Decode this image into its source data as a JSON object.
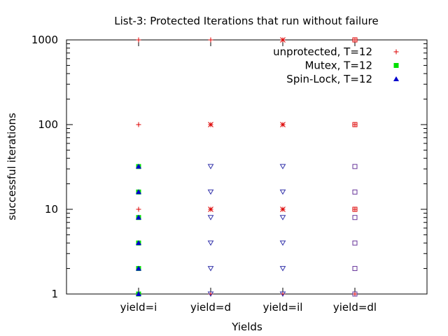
{
  "chart_data": {
    "type": "scatter",
    "title": "List-3: Protected Iterations that run without failure",
    "xlabel": "Yields",
    "ylabel": "successful iterations",
    "categories": [
      "yield=i",
      "yield=d",
      "yield=il",
      "yield=dl"
    ],
    "xlim": [
      0,
      5
    ],
    "ylim": [
      1,
      1000
    ],
    "y_scale": "log",
    "y_ticks": [
      1,
      10,
      100,
      1000
    ],
    "y_tick_labels": [
      "1",
      "10",
      "100",
      "1000"
    ],
    "grid": false,
    "legend_position": "top-right",
    "series": [
      {
        "name": "unprotected, T=12",
        "marker": "plus",
        "color": "#dd0000",
        "points": [
          {
            "x": "yield=i",
            "y": 1000
          },
          {
            "x": "yield=i",
            "y": 100
          },
          {
            "x": "yield=i",
            "y": 10
          },
          {
            "x": "yield=i",
            "y": 1
          },
          {
            "x": "yield=d",
            "y": 1000
          },
          {
            "x": "yield=d",
            "y": 100
          },
          {
            "x": "yield=d",
            "y": 10
          },
          {
            "x": "yield=d",
            "y": 1
          },
          {
            "x": "yield=il",
            "y": 1000
          },
          {
            "x": "yield=il",
            "y": 100
          },
          {
            "x": "yield=il",
            "y": 10
          },
          {
            "x": "yield=il",
            "y": 1
          },
          {
            "x": "yield=dl",
            "y": 1000
          },
          {
            "x": "yield=dl",
            "y": 100
          },
          {
            "x": "yield=dl",
            "y": 10
          },
          {
            "x": "yield=dl",
            "y": 1
          }
        ]
      },
      {
        "name": "Mutex, T=12",
        "marker": "square",
        "color": "#00e000",
        "points": [
          {
            "x": "yield=i",
            "y": 32
          },
          {
            "x": "yield=i",
            "y": 16
          },
          {
            "x": "yield=i",
            "y": 8
          },
          {
            "x": "yield=i",
            "y": 4
          },
          {
            "x": "yield=i",
            "y": 2
          },
          {
            "x": "yield=i",
            "y": 1
          }
        ]
      },
      {
        "name": "Spin-Lock, T=12",
        "marker": "triangle",
        "color": "#0000cc",
        "points": [
          {
            "x": "yield=i",
            "y": 32
          },
          {
            "x": "yield=i",
            "y": 16
          },
          {
            "x": "yield=i",
            "y": 8
          },
          {
            "x": "yield=i",
            "y": 4
          },
          {
            "x": "yield=i",
            "y": 2
          },
          {
            "x": "yield=i",
            "y": 1
          }
        ]
      },
      {
        "name": "",
        "marker": "x",
        "color": "#dd0000",
        "points": [
          {
            "x": "yield=d",
            "y": 100
          },
          {
            "x": "yield=d",
            "y": 10
          },
          {
            "x": "yield=il",
            "y": 1000
          },
          {
            "x": "yield=il",
            "y": 100
          },
          {
            "x": "yield=il",
            "y": 10
          }
        ]
      },
      {
        "name": "",
        "marker": "hollow-square",
        "color": "#dd0000",
        "points": [
          {
            "x": "yield=dl",
            "y": 1000
          },
          {
            "x": "yield=dl",
            "y": 100
          },
          {
            "x": "yield=dl",
            "y": 10
          }
        ]
      },
      {
        "name": "",
        "marker": "down-triangle",
        "color": "#3333aa",
        "points": [
          {
            "x": "yield=d",
            "y": 32
          },
          {
            "x": "yield=d",
            "y": 16
          },
          {
            "x": "yield=d",
            "y": 8
          },
          {
            "x": "yield=d",
            "y": 4
          },
          {
            "x": "yield=d",
            "y": 2
          },
          {
            "x": "yield=d",
            "y": 1
          },
          {
            "x": "yield=il",
            "y": 32
          },
          {
            "x": "yield=il",
            "y": 16
          },
          {
            "x": "yield=il",
            "y": 8
          },
          {
            "x": "yield=il",
            "y": 4
          },
          {
            "x": "yield=il",
            "y": 2
          },
          {
            "x": "yield=il",
            "y": 1
          }
        ]
      },
      {
        "name": "",
        "marker": "hollow-square",
        "color": "#663399",
        "points": [
          {
            "x": "yield=dl",
            "y": 32
          },
          {
            "x": "yield=dl",
            "y": 16
          },
          {
            "x": "yield=dl",
            "y": 8
          },
          {
            "x": "yield=dl",
            "y": 4
          },
          {
            "x": "yield=dl",
            "y": 2
          },
          {
            "x": "yield=dl",
            "y": 1
          }
        ]
      }
    ]
  }
}
